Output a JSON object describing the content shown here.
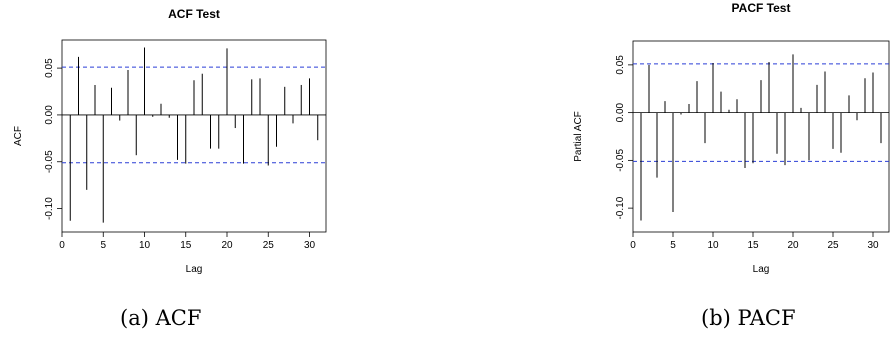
{
  "chart_data": [
    {
      "type": "bar",
      "title": "ACF Test",
      "xlabel": "Lag",
      "ylabel": "ACF",
      "xlim": [
        0,
        32
      ],
      "ylim": [
        -0.125,
        0.08
      ],
      "xticks": [
        0,
        5,
        10,
        15,
        20,
        25,
        30
      ],
      "yticks": [
        0.05,
        0.0,
        -0.05,
        -0.1
      ],
      "ytick_labels": [
        "0.05",
        "0.00",
        "-0.05",
        "-0.10"
      ],
      "confidence_bounds": [
        0.051,
        -0.051
      ],
      "x": [
        1,
        2,
        3,
        4,
        5,
        6,
        7,
        8,
        9,
        10,
        11,
        12,
        13,
        14,
        15,
        16,
        17,
        18,
        19,
        20,
        21,
        22,
        23,
        24,
        25,
        26,
        27,
        28,
        29,
        30,
        31
      ],
      "values": [
        -0.113,
        0.062,
        -0.08,
        0.032,
        -0.115,
        0.029,
        -0.006,
        0.048,
        -0.043,
        0.072,
        -0.002,
        0.012,
        -0.003,
        -0.048,
        -0.052,
        0.037,
        0.044,
        -0.036,
        -0.036,
        0.071,
        -0.014,
        -0.052,
        0.038,
        0.039,
        -0.054,
        -0.034,
        0.03,
        -0.009,
        0.032,
        0.039,
        -0.027
      ],
      "grid": false,
      "caption": "(a) ACF"
    },
    {
      "type": "bar",
      "title": "PACF Test",
      "xlabel": "Lag",
      "ylabel": "Partial ACF",
      "xlim": [
        0,
        32
      ],
      "ylim": [
        -0.125,
        0.075
      ],
      "xticks": [
        0,
        5,
        10,
        15,
        20,
        25,
        30
      ],
      "yticks": [
        0.05,
        0.0,
        -0.05,
        -0.1
      ],
      "ytick_labels": [
        "0.05",
        "0.00",
        "-0.05",
        "-0.10"
      ],
      "confidence_bounds": [
        0.051,
        -0.051
      ],
      "x": [
        1,
        2,
        3,
        4,
        5,
        6,
        7,
        8,
        9,
        10,
        11,
        12,
        13,
        14,
        15,
        16,
        17,
        18,
        19,
        20,
        21,
        22,
        23,
        24,
        25,
        26,
        27,
        28,
        29,
        30,
        31
      ],
      "values": [
        -0.113,
        0.05,
        -0.068,
        0.012,
        -0.104,
        -0.002,
        0.009,
        0.033,
        -0.032,
        0.052,
        0.022,
        0.003,
        0.014,
        -0.058,
        -0.053,
        0.034,
        0.053,
        -0.043,
        -0.055,
        0.061,
        0.005,
        -0.05,
        0.029,
        0.043,
        -0.038,
        -0.042,
        0.018,
        -0.008,
        0.036,
        0.042,
        -0.032
      ],
      "grid": false,
      "caption": "(b) PACF"
    }
  ]
}
